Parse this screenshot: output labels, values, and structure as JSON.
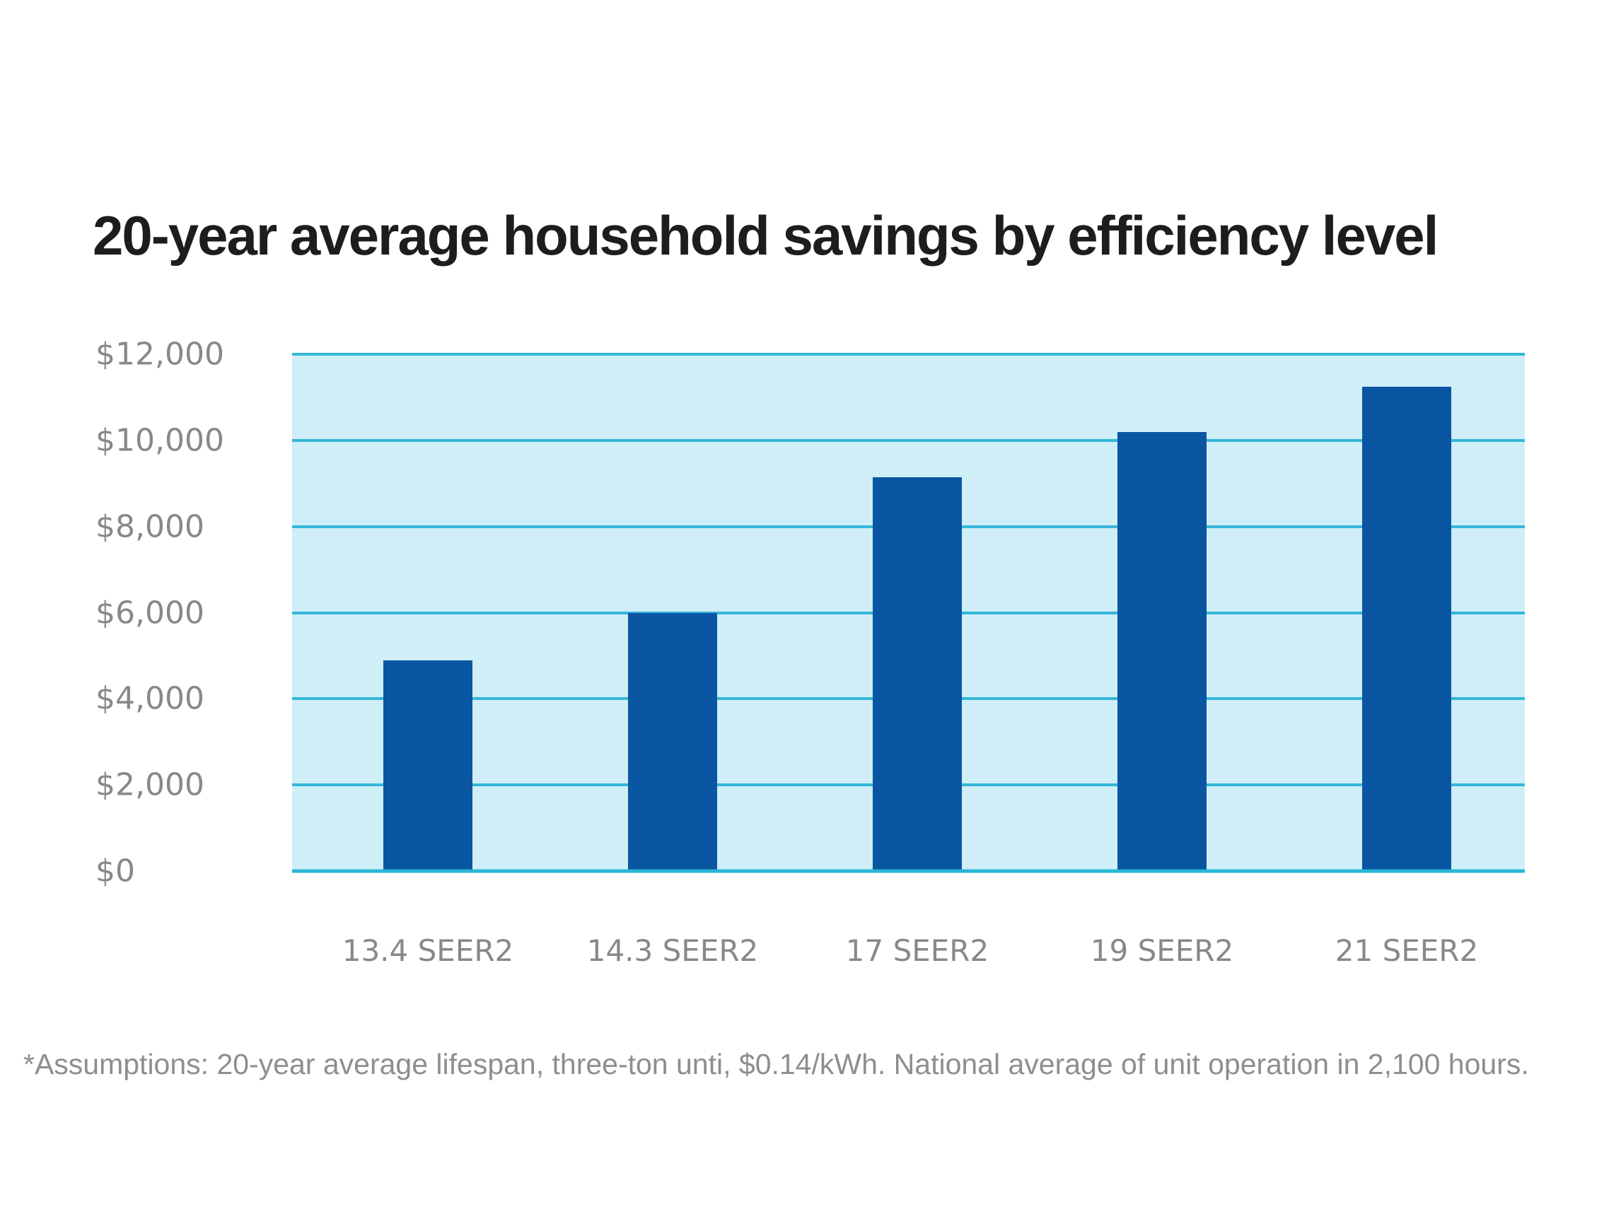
{
  "page": {
    "background": "#ffffff"
  },
  "header": {
    "title": "20-year average household savings by efficiency level"
  },
  "footnote": {
    "text": "*Assumptions: 20-year average lifespan, three-ton unti, $0.14/kWh. National average of unit operation in 2,100 hours."
  },
  "colors": {
    "page_bg": "#ffffff",
    "title_text": "#1d1d1d",
    "axis_text": "#888888",
    "footnote_text": "#8e8e8e",
    "bar": "#0a56a2",
    "gridline": "#35b6d9",
    "baseline": "#29b7d8",
    "plot_bg": "#cfeef7"
  },
  "chart_data": {
    "type": "bar",
    "title": "20-year average household savings by efficiency level",
    "categories": [
      "13.4 SEER2",
      "14.3 SEER2",
      "17 SEER2",
      "19 SEER2",
      "21 SEER2"
    ],
    "values": [
      4900,
      6000,
      9150,
      10200,
      11250
    ],
    "xlabel": "",
    "ylabel": "",
    "ylim": [
      0,
      12000
    ],
    "ytick_step": 2000,
    "ytick_values": [
      0,
      2000,
      4000,
      6000,
      8000,
      10000,
      12000
    ],
    "ytick_labels": [
      "$0",
      "$2,000",
      "$4,000",
      "$6,000",
      "$8,000",
      "$10,000",
      "$12,000"
    ],
    "grid": true,
    "legend": false,
    "footnote": "*Assumptions: 20-year average lifespan, three-ton unti, $0.14/kWh. National average of unit operation in 2,100 hours."
  }
}
